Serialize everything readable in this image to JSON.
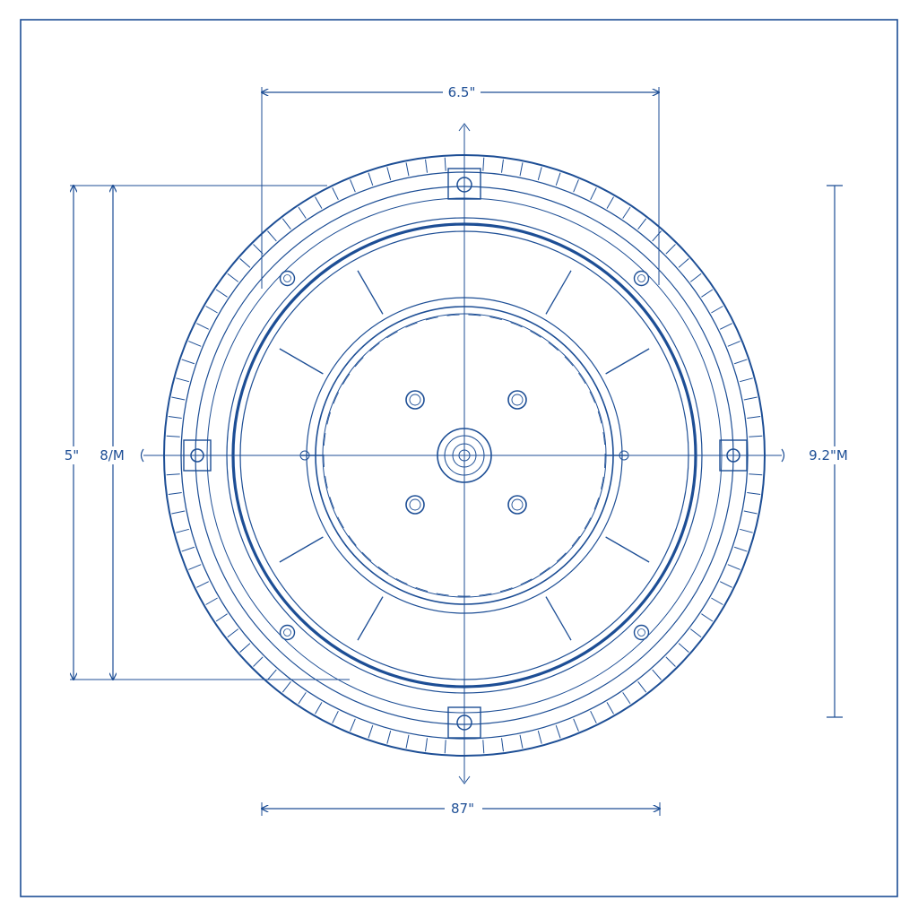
{
  "dimensions": {
    "top": "6.5\"",
    "bottom": "87\"",
    "left_outer": "5\"",
    "left_inner": "8/M",
    "right": "9.2\"M"
  },
  "colors": {
    "ink": "#1d4e95",
    "paper": "#ffffff"
  }
}
